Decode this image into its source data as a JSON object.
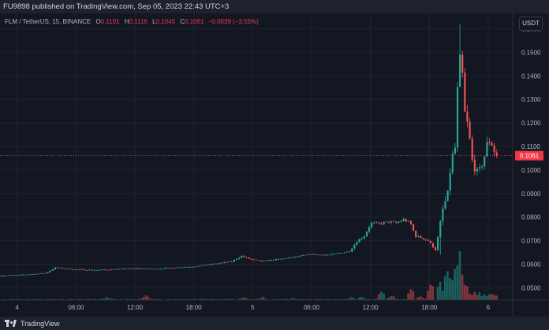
{
  "header": {
    "published_text": "FU9898 published on TradingView.com, Sep 05, 2023 22:43 UTC+3"
  },
  "legend": {
    "symbol": "FLM / TetherUS, 15, BINANCE",
    "o_label": "O",
    "o_value": "0.1101",
    "h_label": "H",
    "h_value": "0.1116",
    "l_label": "L",
    "l_value": "0.1045",
    "c_label": "C",
    "c_value": "0.1061",
    "change": "−0.0039 (−3.55%)"
  },
  "currency_button": "USDT",
  "footer": {
    "brand": "TradingView"
  },
  "colors": {
    "up": "#26a69a",
    "down": "#ef5350",
    "background": "#131722",
    "grid": "#1f2330",
    "text": "#b2b5be"
  },
  "chart_data": {
    "type": "candlestick",
    "y_ticks": [
      "0.1600",
      "0.1500",
      "0.1400",
      "0.1300",
      "0.1200",
      "0.1100",
      "0.1000",
      "0.0900",
      "0.0800",
      "0.0700",
      "0.0600",
      "0.0500"
    ],
    "y_tick_values": [
      0.16,
      0.15,
      0.14,
      0.13,
      0.12,
      0.11,
      0.1,
      0.09,
      0.08,
      0.07,
      0.06,
      0.05
    ],
    "ylim": [
      0.0448,
      0.1665
    ],
    "x_ticks": [
      "4",
      "06:00",
      "12:00",
      "18:00",
      "5",
      "06:00",
      "12:00",
      "18:00",
      "6"
    ],
    "x_tick_hours": [
      0,
      6,
      12,
      18,
      24,
      30,
      36,
      42,
      48
    ],
    "xlim_hours": [
      -1.75,
      50.5
    ],
    "last_price": "0.1061",
    "last_price_value": 0.1061,
    "price_anchors": [
      [
        -1.75,
        0.0552
      ],
      [
        0,
        0.0553
      ],
      [
        3,
        0.0562
      ],
      [
        4,
        0.0585
      ],
      [
        6,
        0.0578
      ],
      [
        8,
        0.0575
      ],
      [
        10,
        0.0578
      ],
      [
        12,
        0.0582
      ],
      [
        14,
        0.058
      ],
      [
        16,
        0.0585
      ],
      [
        18,
        0.059
      ],
      [
        20,
        0.06
      ],
      [
        22,
        0.0612
      ],
      [
        23,
        0.0635
      ],
      [
        24,
        0.062
      ],
      [
        25,
        0.0613
      ],
      [
        27,
        0.0622
      ],
      [
        29,
        0.0635
      ],
      [
        30,
        0.0643
      ],
      [
        31,
        0.064
      ],
      [
        32,
        0.064
      ],
      [
        33,
        0.0648
      ],
      [
        34,
        0.0655
      ],
      [
        34.8,
        0.07
      ],
      [
        35.5,
        0.072
      ],
      [
        36.2,
        0.0775
      ],
      [
        37,
        0.0772
      ],
      [
        38,
        0.078
      ],
      [
        38.8,
        0.0775
      ],
      [
        39.5,
        0.079
      ],
      [
        40.2,
        0.0775
      ],
      [
        40.7,
        0.072
      ],
      [
        41.5,
        0.071
      ],
      [
        42.0,
        0.07
      ],
      [
        42.8,
        0.066
      ],
      [
        43.4,
        0.082
      ],
      [
        44.0,
        0.09
      ],
      [
        44.4,
        0.105
      ],
      [
        44.8,
        0.11
      ],
      [
        45.1,
        0.146
      ],
      [
        45.4,
        0.148
      ],
      [
        45.7,
        0.125
      ],
      [
        46.1,
        0.118
      ],
      [
        46.5,
        0.104
      ],
      [
        46.9,
        0.099
      ],
      [
        47.3,
        0.1
      ],
      [
        47.7,
        0.105
      ],
      [
        48.1,
        0.113
      ],
      [
        48.5,
        0.111
      ],
      [
        48.9,
        0.1061
      ]
    ],
    "volume_spikes": [
      [
        9,
        0.8
      ],
      [
        13,
        1.3
      ],
      [
        23,
        1.0
      ],
      [
        25,
        0.9
      ],
      [
        28,
        0.7
      ],
      [
        34,
        0.9
      ],
      [
        35,
        1.0
      ],
      [
        37,
        2.6
      ],
      [
        38,
        1.4
      ],
      [
        40,
        3.6
      ],
      [
        41,
        1.2
      ],
      [
        42,
        5.6
      ],
      [
        43,
        5.2
      ],
      [
        43.7,
        9.0
      ],
      [
        44.1,
        8.3
      ],
      [
        44.6,
        11.5
      ],
      [
        45.0,
        14.8
      ],
      [
        45.3,
        7.4
      ],
      [
        45.8,
        4.0
      ],
      [
        46.4,
        3.0
      ],
      [
        47.0,
        2.2
      ],
      [
        47.6,
        1.8
      ],
      [
        48.2,
        2.5
      ],
      [
        48.8,
        1.5
      ]
    ]
  }
}
